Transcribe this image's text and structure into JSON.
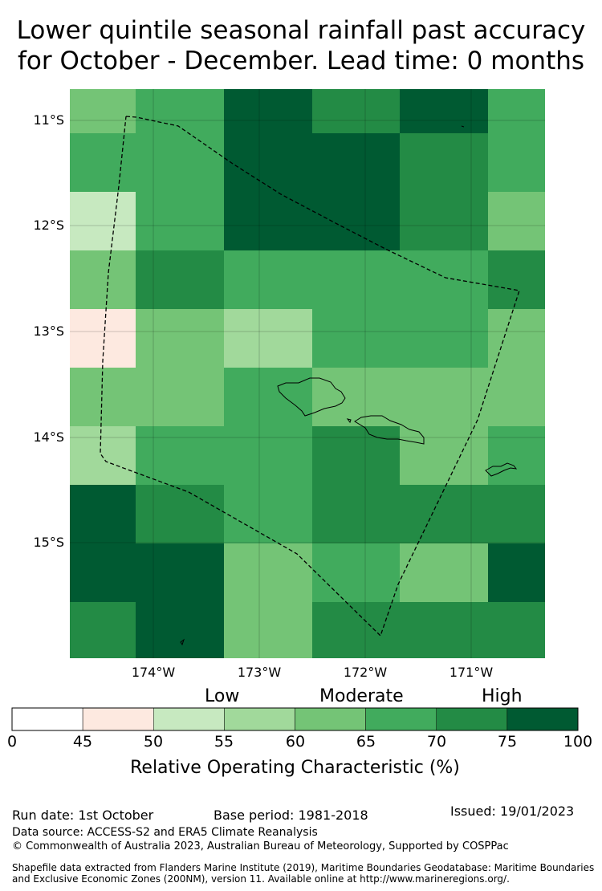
{
  "title": {
    "line1": "Lower quintile seasonal rainfall past accuracy",
    "line2": "for October - December. Lead time: 0 months"
  },
  "map": {
    "lat_labels": [
      "11°S",
      "12°S",
      "13°S",
      "14°S",
      "15°S"
    ],
    "lon_labels": [
      "174°W",
      "173°W",
      "172°W",
      "171°W"
    ],
    "grid_values_pct": [
      [
        62,
        67,
        80,
        72,
        80,
        67
      ],
      [
        67,
        67,
        80,
        80,
        72,
        67
      ],
      [
        52,
        67,
        80,
        80,
        72,
        62
      ],
      [
        62,
        72,
        67,
        67,
        67,
        72
      ],
      [
        47,
        62,
        57,
        67,
        67,
        62
      ],
      [
        62,
        62,
        67,
        62,
        62,
        62
      ],
      [
        57,
        67,
        67,
        72,
        62,
        67
      ],
      [
        80,
        72,
        67,
        72,
        72,
        72
      ],
      [
        80,
        80,
        62,
        67,
        62,
        80
      ],
      [
        72,
        80,
        62,
        72,
        72,
        72
      ]
    ]
  },
  "legend": {
    "categories": [
      "Low",
      "Moderate",
      "High"
    ],
    "ticks": [
      "0",
      "45",
      "50",
      "55",
      "60",
      "65",
      "70",
      "75",
      "100"
    ],
    "bins": [
      {
        "range": [
          0,
          45
        ],
        "color": "#ffffff"
      },
      {
        "range": [
          45,
          50
        ],
        "color": "#fde9e0"
      },
      {
        "range": [
          50,
          55
        ],
        "color": "#c7e9c0"
      },
      {
        "range": [
          55,
          60
        ],
        "color": "#a1d99b"
      },
      {
        "range": [
          60,
          65
        ],
        "color": "#74c476"
      },
      {
        "range": [
          65,
          70
        ],
        "color": "#41ab5d"
      },
      {
        "range": [
          70,
          75
        ],
        "color": "#238b45"
      },
      {
        "range": [
          75,
          100
        ],
        "color": "#005a32"
      }
    ],
    "label": "Relative Operating Characteristic (%)"
  },
  "footer": {
    "run_date": "Run date: 1st October",
    "base_period": "Base period: 1981-2018",
    "issued": "Issued: 19/01/2023",
    "data_source": "Data source: ACCESS-S2 and ERA5 Climate Reanalysis",
    "copyright": "© Commonwealth of Australia 2023, Australian Bureau of Meteorology, Supported by COSPPac",
    "shapefile_1": "Shapefile data extracted from Flanders Marine Institute (2019), Maritime Boundaries Geodatabase: Maritime Boundaries",
    "shapefile_2": "and Exclusive Economic Zones (200NM), version 11. Available online at http://www.marineregions.org/."
  }
}
